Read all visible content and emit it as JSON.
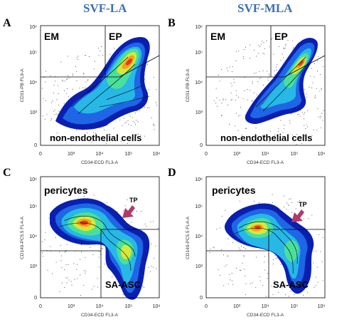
{
  "columns": [
    {
      "title": "SVF-LA"
    },
    {
      "title": "SVF-MLA"
    }
  ],
  "panels": [
    {
      "letter": "A",
      "xlabel": "CD34-ECD FL3-A",
      "ylabel": "CD31-PB FL9-A",
      "gates": [
        "EM",
        "EP",
        "non-endothelial cells"
      ]
    },
    {
      "letter": "B",
      "xlabel": "CD34-ECD FL3-A",
      "ylabel": "CD31-PB FL9-A",
      "gates": [
        "EM",
        "EP",
        "non-endothelial cells"
      ]
    },
    {
      "letter": "C",
      "xlabel": "CD34-ECD FL3-A",
      "ylabel": "CD140-PC5.5 FL4-A",
      "gates": [
        "pericytes",
        "TP",
        "SA-ASC"
      ]
    },
    {
      "letter": "D",
      "xlabel": "CD34-ECD FL3-A",
      "ylabel": "CD140-PC5.5 FL4-A",
      "gates": [
        "pericytes",
        "TP",
        "SA-ASC"
      ]
    }
  ],
  "axis_ticks": {
    "x": [
      "0",
      "10³",
      "10⁴",
      "10⁵",
      "10⁶"
    ],
    "y": [
      "0",
      "10³",
      "10⁴",
      "10⁵",
      "10⁶"
    ]
  },
  "colors": {
    "title": "#3b6fb6",
    "density": [
      "#0a1fb0",
      "#1e66e6",
      "#27b8e6",
      "#4be09a",
      "#d6e83a",
      "#f2a21a",
      "#e8341b"
    ],
    "arrow": "#b03a6a"
  }
}
